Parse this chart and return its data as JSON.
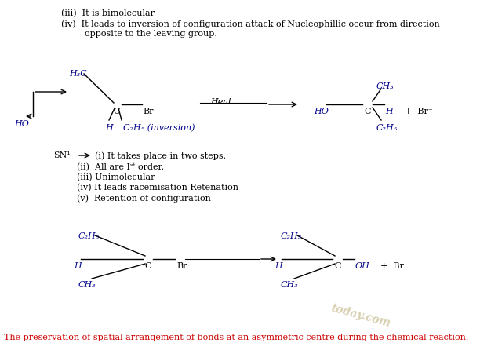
{
  "bg_color": "#ffffff",
  "text_color": "#000000",
  "blue_color": "#00008B",
  "red_color": "#cc0000",
  "line1": "(iii)  It is bimolecular",
  "line2": "(iv)  It leads to inversion of configuration attack of Nucleophillic occur from direction",
  "line2b": "opposite to the leaving group.",
  "sn1_label": "SN¹",
  "sn1_line": "(i) It takes place in two steps.",
  "sn1_ii": "(ii)  All are Iˢᵗ order.",
  "sn1_iii": "(iii) Unimolecular",
  "sn1_iv": "(iv) It leads racemisation Retenation",
  "sn1_v": "(v)  Retention of configuration",
  "bottom_text": "The preservation of spatial arrangement of bonds at an asymmetric centre during the chemical reaction.",
  "watermark": "today.com",
  "heat_label": "Heat"
}
